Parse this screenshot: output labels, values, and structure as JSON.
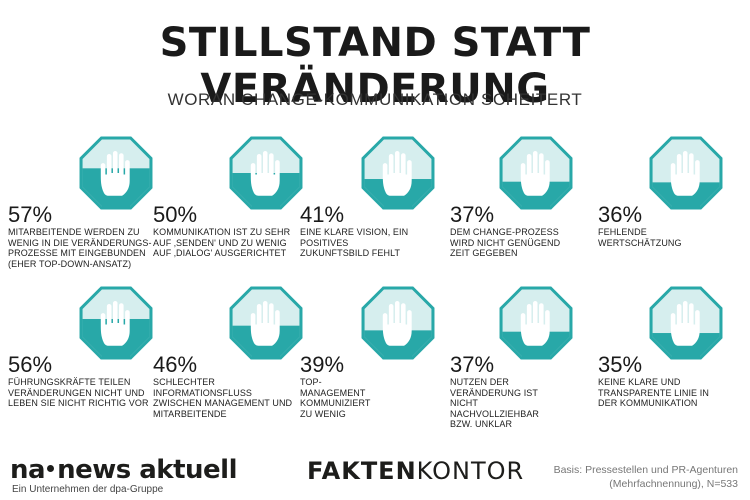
{
  "header": {
    "title": "STILLSTAND STATT VERÄNDERUNG",
    "subtitle": "WORAN CHANGE-KOMMUNIKATION SCHEITERT"
  },
  "colors": {
    "teal": "#28a8a8",
    "octagon_fill": "#d6eeee",
    "hand": "#ffffff",
    "border": "#ffffff"
  },
  "icon": "stop-hand-octagon-icon",
  "chart_data": {
    "type": "table",
    "items": [
      {
        "value": 57,
        "label": "57%",
        "text": "MITARBEITENDE WERDEN ZU WENIG IN DIE VERÄNDERUNGS-PROZESSE MIT EINGEBUNDEN (EHER TOP-DOWN-ANSATZ)"
      },
      {
        "value": 50,
        "label": "50%",
        "text": "KOMMUNIKATION IST ZU SEHR AUF ‚SENDEN' UND ZU WENIG AUF ‚DIALOG' AUSGERICHTET"
      },
      {
        "value": 41,
        "label": "41%",
        "text": "EINE KLARE VISION, EIN POSITIVES ZUKUNFTSBILD FEHLT"
      },
      {
        "value": 37,
        "label": "37%",
        "text": "DEM CHANGE-PROZESS WIRD NICHT GENÜGEND ZEIT GEGEBEN"
      },
      {
        "value": 36,
        "label": "36%",
        "text": "FEHLENDE WERTSCHÄTZUNG"
      },
      {
        "value": 56,
        "label": "56%",
        "text": "FÜHRUNGSKRÄFTE TEILEN VERÄNDERUNGEN NICHT UND LEBEN SIE NICHT RICHTIG VOR"
      },
      {
        "value": 46,
        "label": "46%",
        "text": "SCHLECHTER INFORMATIONSFLUSS ZWISCHEN MANAGEMENT UND MITARBEITENDE"
      },
      {
        "value": 39,
        "label": "39%",
        "text": "TOP-MANAGEMENT KOMMUNIZIERT ZU WENIG"
      },
      {
        "value": 37,
        "label": "37%",
        "text": "NUTZEN DER VERÄNDERUNG IST NICHT NACHVOLLZIEHBAR BZW. UNKLAR"
      },
      {
        "value": 35,
        "label": "35%",
        "text": "KEINE KLARE UND TRANSPARENTE LINIE IN DER KOMMUNIKATION"
      }
    ]
  },
  "footer": {
    "na_left": "na",
    "na_right": "news aktuell",
    "na_sub": "Ein Unternehmen der dpa-Gruppe",
    "fk_a": "FAKTEN",
    "fk_b": "KONTOR",
    "basis_line1": "Basis: Pressestellen und PR-Agenturen",
    "basis_line2": "(Mehrfachnennung), N=533"
  }
}
